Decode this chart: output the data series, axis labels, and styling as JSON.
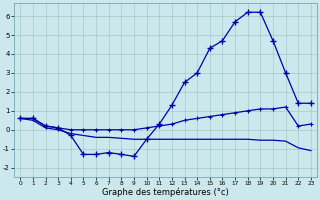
{
  "xlabel": "Graphe des températures (°c)",
  "background_color": "#cde8ec",
  "grid_color": "#a0cccc",
  "line_color": "#0000aa",
  "hours": [
    0,
    1,
    2,
    3,
    4,
    5,
    6,
    7,
    8,
    9,
    10,
    11,
    12,
    13,
    14,
    15,
    16,
    17,
    18,
    19,
    20,
    21,
    22,
    23
  ],
  "line_main": [
    0.6,
    0.6,
    0.2,
    0.1,
    -0.3,
    -1.3,
    -1.3,
    -1.2,
    -1.3,
    -1.4,
    -0.5,
    0.3,
    1.3,
    2.5,
    3.0,
    4.3,
    4.7,
    5.7,
    6.2,
    6.2,
    4.7,
    3.0,
    1.4,
    1.4
  ],
  "line_mid": [
    0.6,
    0.6,
    0.2,
    0.1,
    0.0,
    0.0,
    0.0,
    0.0,
    0.0,
    0.0,
    0.1,
    0.2,
    0.3,
    0.5,
    0.6,
    0.7,
    0.8,
    0.9,
    1.0,
    1.1,
    1.1,
    1.2,
    0.2,
    0.3
  ],
  "line_low": [
    0.6,
    0.5,
    0.1,
    0.0,
    -0.2,
    -0.3,
    -0.4,
    -0.4,
    -0.45,
    -0.5,
    -0.5,
    -0.5,
    -0.5,
    -0.5,
    -0.5,
    -0.5,
    -0.5,
    -0.5,
    -0.5,
    -0.55,
    -0.55,
    -0.6,
    -0.95,
    -1.1
  ],
  "ylim": [
    -2.5,
    6.7
  ],
  "yticks": [
    -2,
    -1,
    0,
    1,
    2,
    3,
    4,
    5,
    6
  ]
}
